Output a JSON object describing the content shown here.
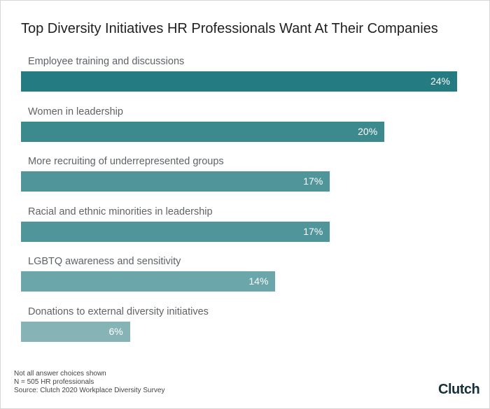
{
  "chart_data": {
    "type": "bar",
    "orientation": "horizontal",
    "title": "Top Diversity Initiatives HR Professionals Want At Their Companies",
    "categories": [
      "Employee training and discussions",
      "Women in leadership",
      "More recruiting of underrepresented groups",
      "Racial and ethnic minorities in leadership",
      "LGBTQ awareness and sensitivity",
      "Donations to external diversity initiatives"
    ],
    "values": [
      24,
      20,
      17,
      17,
      14,
      6
    ],
    "value_labels": [
      "24%",
      "20%",
      "17%",
      "17%",
      "14%",
      "6%"
    ],
    "colors": [
      "#257b82",
      "#3d8a8e",
      "#4f9599",
      "#4f9599",
      "#6aa6aa",
      "#86b4b6"
    ],
    "grid": false,
    "legend": "none"
  },
  "footnotes": [
    "Not all answer choices shown",
    "N = 505 HR professionals",
    "Source: Clutch 2020 Workplace Diversity Survey"
  ],
  "logo": "Clutch"
}
